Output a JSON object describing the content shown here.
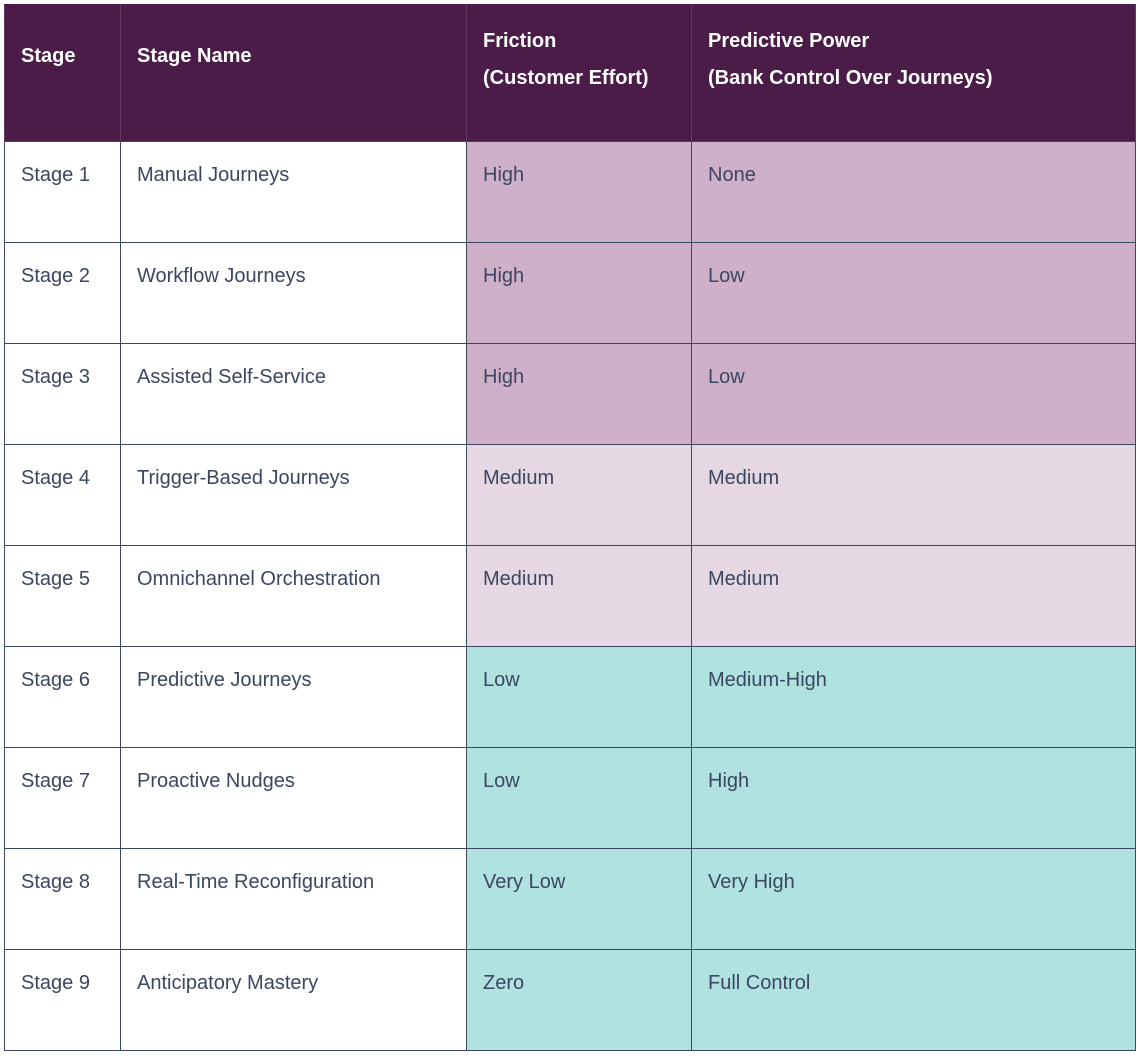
{
  "header": {
    "stage": "Stage",
    "stage_name": "Stage Name",
    "friction": [
      "Friction",
      "(Customer Effort)"
    ],
    "predictive": [
      "Predictive Power",
      "(Bank Control Over Journeys)"
    ]
  },
  "colors": {
    "header_bg": "#4a1c47",
    "high_band": "#cfb0c9",
    "medium_band": "#e6d8e2",
    "low_band": "#b0e3e0",
    "text": "#3b4660"
  },
  "rows": [
    {
      "stage": "Stage 1",
      "name": "Manual Journeys",
      "friction": "High",
      "power": "None",
      "band": "high"
    },
    {
      "stage": "Stage 2",
      "name": "Workflow Journeys",
      "friction": "High",
      "power": "Low",
      "band": "high"
    },
    {
      "stage": "Stage 3",
      "name": "Assisted Self-Service",
      "friction": "High",
      "power": "Low",
      "band": "high"
    },
    {
      "stage": "Stage 4",
      "name": "Trigger-Based Journeys",
      "friction": "Medium",
      "power": "Medium",
      "band": "med"
    },
    {
      "stage": "Stage 5",
      "name": "Omnichannel Orchestration",
      "friction": "Medium",
      "power": "Medium",
      "band": "med"
    },
    {
      "stage": "Stage 6",
      "name": "Predictive Journeys",
      "friction": "Low",
      "power": "Medium-High",
      "band": "low"
    },
    {
      "stage": "Stage 7",
      "name": "Proactive Nudges",
      "friction": "Low",
      "power": "High",
      "band": "low"
    },
    {
      "stage": "Stage 8",
      "name": "Real-Time Reconfiguration",
      "friction": "Very Low",
      "power": "Very High",
      "band": "low"
    },
    {
      "stage": "Stage 9",
      "name": "Anticipatory Mastery",
      "friction": "Zero",
      "power": "Full Control",
      "band": "low"
    }
  ]
}
